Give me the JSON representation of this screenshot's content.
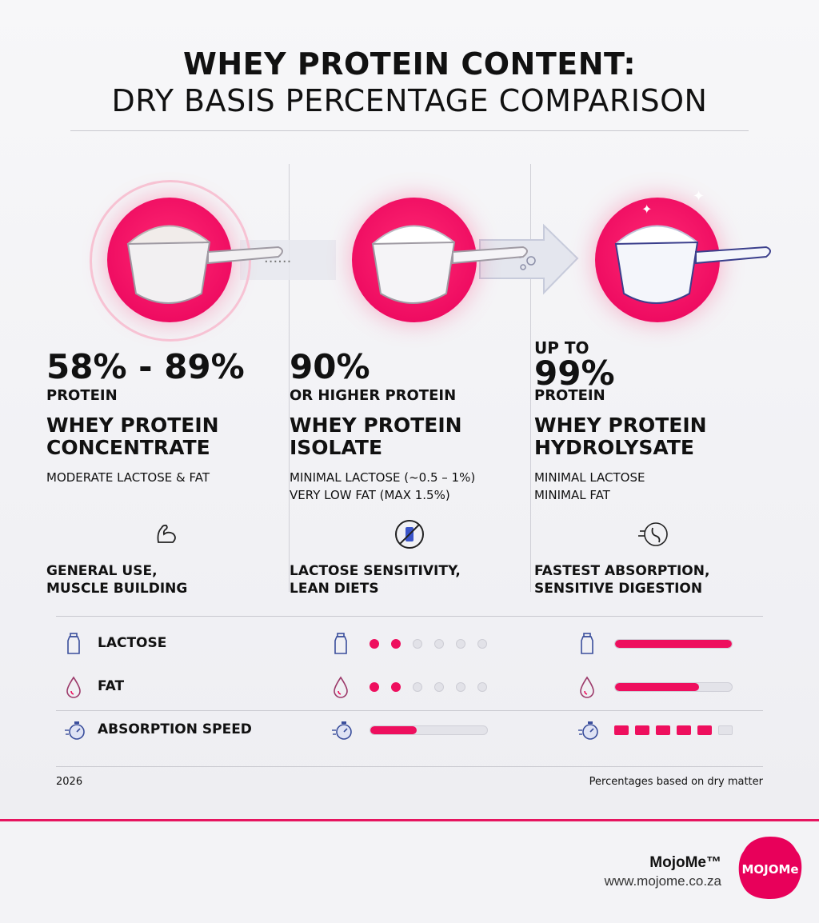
{
  "header": {
    "title_line1": "WHEY PROTEIN CONTENT:",
    "title_line2": "DRY BASIS PERCENTAGE COMPARISON"
  },
  "columns": [
    {
      "pre": "",
      "percent": "58% - 89%",
      "unit": "PROTEIN",
      "name_line1": "WHEY PROTEIN",
      "name_line2": "CONCENTRATE",
      "desc_line1": "MODERATE LACTOSE & FAT",
      "desc_line2": "",
      "use_line1": "GENERAL USE,",
      "use_line2": "MUSCLE BUILDING",
      "icon": "flexed-arm-icon"
    },
    {
      "pre": "",
      "percent": "90%",
      "unit": "OR HIGHER PROTEIN",
      "name_line1": "WHEY PROTEIN",
      "name_line2": "ISOLATE",
      "desc_line1": "MINIMAL LACTOSE (~0.5 – 1%)",
      "desc_line2": "VERY LOW FAT (MAX 1.5%)",
      "use_line1": "LACTOSE SENSITIVITY,",
      "use_line2": "LEAN DIETS",
      "icon": "no-milk-icon"
    },
    {
      "pre": "UP TO",
      "percent": "99%",
      "unit": "PROTEIN",
      "name_line1": "WHEY PROTEIN",
      "name_line2": "HYDROLYSATE",
      "desc_line1": "MINIMAL LACTOSE",
      "desc_line2": "MINIMAL FAT",
      "use_line1": "FASTEST ABSORPTION,",
      "use_line2": "SENSITIVE DIGESTION",
      "icon": "stomach-icon"
    }
  ],
  "comparison": {
    "rows": [
      {
        "label": "LACTOSE",
        "icon": "milk-bottle-icon",
        "isolate": {
          "style": "dots",
          "on": 2,
          "total": 6
        },
        "hydrolysate": {
          "style": "bar",
          "fraction": 1.0
        }
      },
      {
        "label": "FAT",
        "icon": "droplet-icon",
        "isolate": {
          "style": "dots",
          "on": 2,
          "total": 6
        },
        "hydrolysate": {
          "style": "bar",
          "fraction": 0.72
        }
      },
      {
        "label": "ABSORPTION SPEED",
        "icon": "stopwatch-icon",
        "isolate": {
          "style": "bar",
          "fraction": 0.4
        },
        "hydrolysate": {
          "style": "segments",
          "on": 5,
          "total": 6
        }
      }
    ]
  },
  "footer": {
    "year": "2026",
    "note": "Percentages based on dry matter"
  },
  "brand": {
    "name": "MojoMe™",
    "url": "www.mojome.co.za",
    "logo_text": "MOJOMe"
  },
  "colors": {
    "accent": "#ee0f5e",
    "muted": "#e3e3e9"
  }
}
